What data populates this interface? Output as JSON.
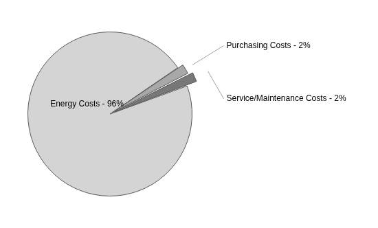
{
  "chart_data": {
    "type": "pie",
    "categories": [
      "Energy Costs - 96%",
      "Purchasing Costs - 2%",
      "Service/Maintenance Costs - 2%"
    ],
    "values": [
      96,
      2,
      2
    ],
    "colors": [
      "#d4d4d4",
      "#a8a8a8",
      "#787878"
    ]
  }
}
